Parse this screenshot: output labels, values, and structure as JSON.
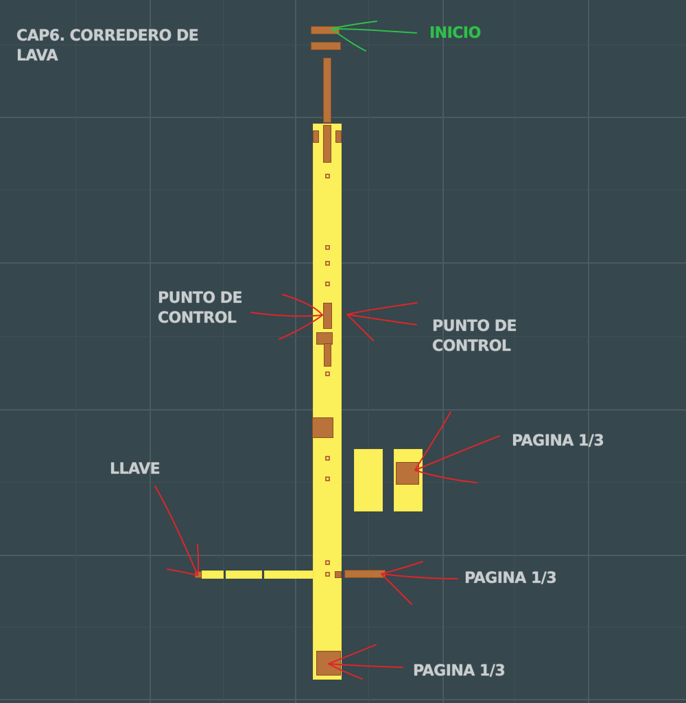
{
  "map": {
    "title": "CAP6. CORREDERO DE LAVA",
    "start_label": "INICIO",
    "annotations": {
      "checkpoint_left": "PUNTO DE CONTROL",
      "checkpoint_right": "PUNTO DE CONTROL",
      "key": "LLAVE",
      "page_right_top": "PAGINA 1/3",
      "page_right_mid": "PAGINA 1/3",
      "page_bottom": "PAGINA 1/3"
    }
  },
  "colors": {
    "background": "#36474d",
    "platform": "#fbef5a",
    "block": "#b8723a",
    "start_marker": "#2fbf4a",
    "arrow": "#e0252a"
  }
}
